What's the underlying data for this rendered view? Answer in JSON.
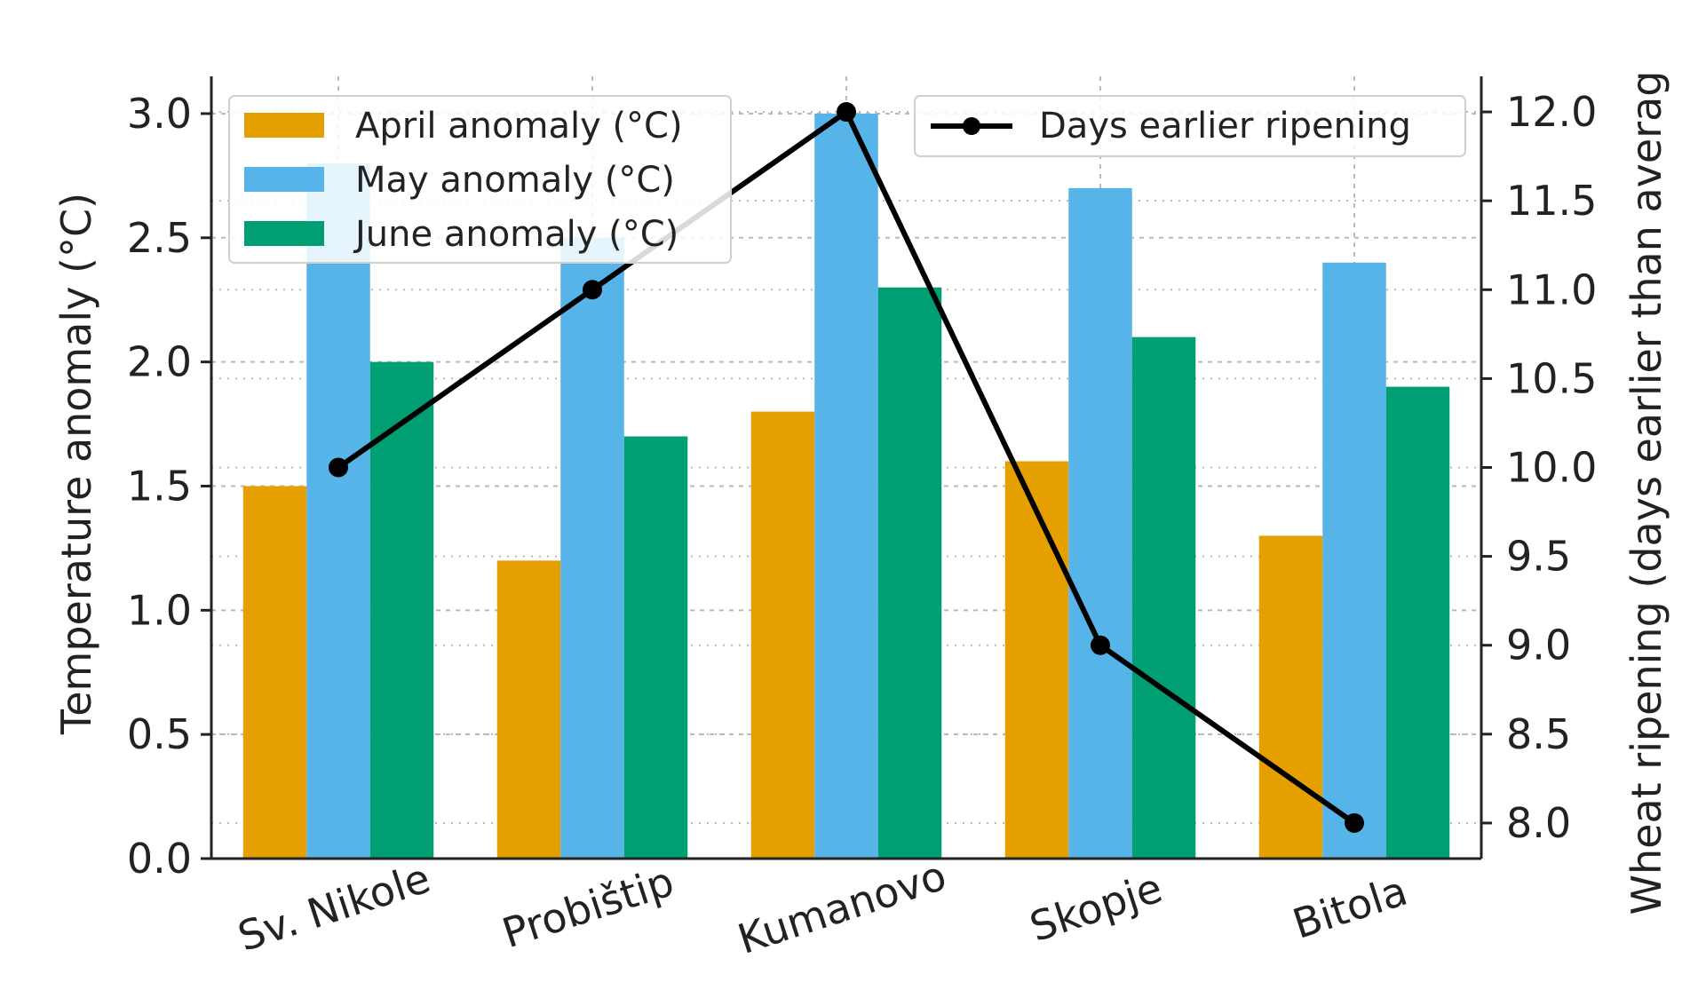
{
  "caption": "",
  "colors": {
    "april": "#E69F00",
    "may": "#56B4E9",
    "june": "#009E73",
    "line": "#000000",
    "grid": "#b8b8b8",
    "axis": "#222222"
  },
  "chart_data": {
    "type": "bar",
    "categories": [
      "Sv. Nikole",
      "Probištip",
      "Kumanovo",
      "Skopje",
      "Bitola"
    ],
    "series": [
      {
        "name": "April anomaly (°C)",
        "values": [
          1.5,
          1.2,
          1.8,
          1.6,
          1.3
        ],
        "axis": "left",
        "kind": "bar"
      },
      {
        "name": "May anomaly (°C)",
        "values": [
          2.8,
          2.5,
          3.0,
          2.7,
          2.4
        ],
        "axis": "left",
        "kind": "bar"
      },
      {
        "name": "June anomaly (°C)",
        "values": [
          2.0,
          1.7,
          2.3,
          2.1,
          1.9
        ],
        "axis": "left",
        "kind": "bar"
      },
      {
        "name": "Days earlier ripening",
        "values": [
          10.0,
          11.0,
          12.0,
          9.0,
          8.0
        ],
        "axis": "right",
        "kind": "line"
      }
    ],
    "ylabel": "Temperature anomaly (°C)",
    "y2label": "Wheat ripening (days earlier than averag",
    "ylim": [
      0,
      3.15
    ],
    "y2lim": [
      7.8,
      12.2
    ],
    "yticks": [
      "0.0",
      "0.5",
      "1.0",
      "1.5",
      "2.0",
      "2.5",
      "3.0"
    ],
    "y2ticks": [
      "8.0",
      "8.5",
      "9.0",
      "9.5",
      "10.0",
      "10.5",
      "11.0",
      "11.5",
      "12.0"
    ],
    "grid": true,
    "grid_style": "dashed",
    "legend_bars_position": "upper-left",
    "legend_line_position": "upper-right"
  }
}
